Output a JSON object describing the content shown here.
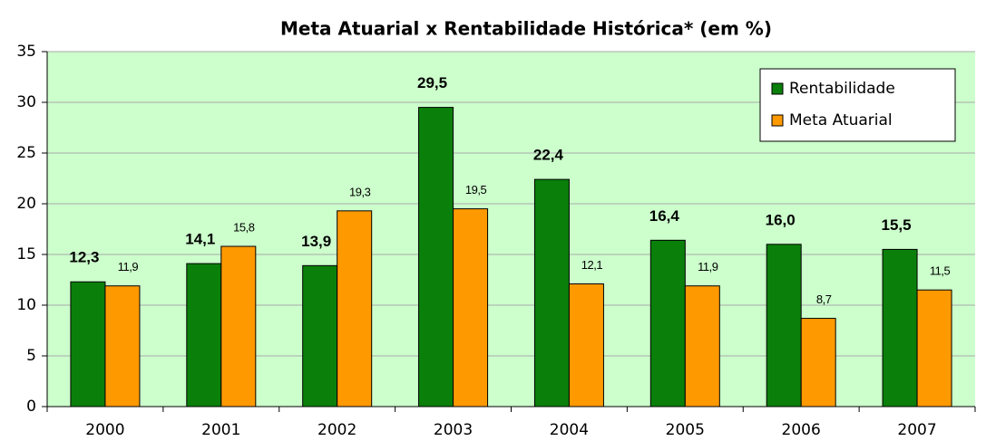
{
  "chart_data": {
    "type": "bar",
    "title": "Meta Atuarial x Rentabilidade Histórica* (em %)",
    "categories": [
      "2000",
      "2001",
      "2002",
      "2003",
      "2004",
      "2005",
      "2006",
      "2007"
    ],
    "series": [
      {
        "name": "Rentabilidade",
        "color": "#0a800a",
        "values": [
          12.3,
          14.1,
          13.9,
          29.5,
          22.4,
          16.4,
          16.0,
          15.5
        ],
        "value_labels": [
          "12,3",
          "14,1",
          "13,9",
          "29,5",
          "22,4",
          "16,4",
          "16,0",
          "15,5"
        ]
      },
      {
        "name": "Meta Atuarial",
        "color": "#ff9900",
        "values": [
          11.9,
          15.8,
          19.3,
          19.5,
          12.1,
          11.9,
          8.7,
          11.5
        ],
        "value_labels": [
          "11,9",
          "15,8",
          "19,3",
          "19,5",
          "12,1",
          "11,9",
          "8,7",
          "11,5"
        ]
      }
    ],
    "ylim": [
      0,
      35
    ],
    "yticks": [
      0,
      5,
      10,
      15,
      20,
      25,
      30,
      35
    ],
    "grid": true,
    "legend": "upper right"
  }
}
